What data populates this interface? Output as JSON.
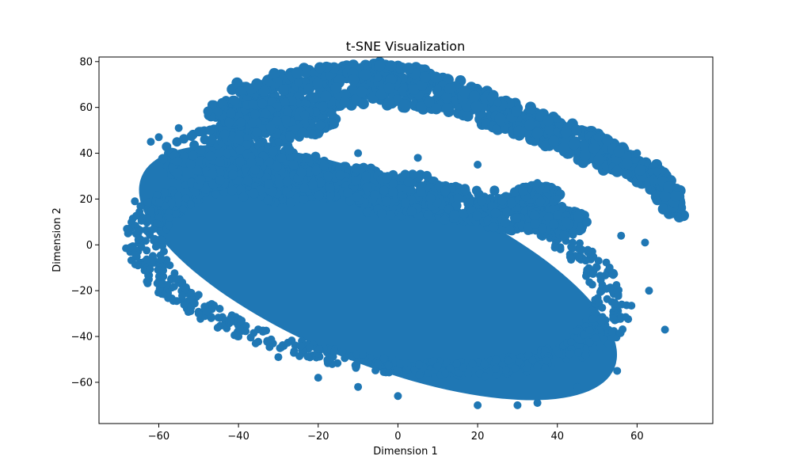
{
  "chart_data": {
    "type": "scatter",
    "title": "t-SNE Visualization",
    "xlabel": "Dimension 1",
    "ylabel": "Dimension 2",
    "xlim": [
      -75,
      79
    ],
    "ylim": [
      -78,
      82
    ],
    "xticks": [
      -60,
      -40,
      -20,
      0,
      20,
      40,
      60
    ],
    "yticks": [
      -60,
      -40,
      -20,
      0,
      20,
      40,
      60,
      80
    ],
    "grid": false,
    "legend": "none",
    "marker_color": "#1f77b4",
    "marker": "circle",
    "approximate_point_count": 15000,
    "regions": [
      {
        "label": "main-cluster",
        "shape": "ellipse",
        "center": [
          -5,
          -12
        ],
        "radii": [
          64,
          40
        ],
        "rotation_deg": -22,
        "x_range": [
          -69,
          68
        ],
        "y_range": [
          -71,
          49
        ]
      },
      {
        "label": "upper-arc",
        "shape": "arc",
        "x_range": [
          -40,
          72
        ],
        "y_range": [
          12,
          75
        ],
        "path": [
          [
            -40,
            62
          ],
          [
            -25,
            68
          ],
          [
            -5,
            71
          ],
          [
            10,
            67
          ],
          [
            25,
            58
          ],
          [
            40,
            48
          ],
          [
            55,
            38
          ],
          [
            65,
            28
          ],
          [
            70,
            16
          ]
        ]
      },
      {
        "label": "inner-bands",
        "shape": "bands",
        "x_range": [
          -15,
          45
        ],
        "y_range": [
          10,
          40
        ]
      }
    ],
    "sample_points": [
      [
        -68,
        7
      ],
      [
        -67,
        -1
      ],
      [
        -66,
        19
      ],
      [
        -63,
        -16
      ],
      [
        -62,
        45
      ],
      [
        -60,
        47
      ],
      [
        -55,
        51
      ],
      [
        -50,
        -30
      ],
      [
        -45,
        58
      ],
      [
        -40,
        -40
      ],
      [
        -30,
        -49
      ],
      [
        -25,
        71
      ],
      [
        -20,
        -58
      ],
      [
        -10,
        -62
      ],
      [
        -5,
        73
      ],
      [
        0,
        -66
      ],
      [
        10,
        68
      ],
      [
        20,
        -70
      ],
      [
        25,
        62
      ],
      [
        30,
        -70
      ],
      [
        35,
        -69
      ],
      [
        40,
        55
      ],
      [
        45,
        -62
      ],
      [
        50,
        47
      ],
      [
        55,
        -55
      ],
      [
        60,
        40
      ],
      [
        63,
        -20
      ],
      [
        65,
        32
      ],
      [
        67,
        -37
      ],
      [
        70,
        25
      ],
      [
        72,
        13
      ],
      [
        45,
        13
      ],
      [
        40,
        20
      ],
      [
        35,
        27
      ],
      [
        20,
        35
      ],
      [
        5,
        38
      ],
      [
        -10,
        40
      ],
      [
        -30,
        45
      ],
      [
        56,
        4
      ],
      [
        62,
        1
      ]
    ]
  }
}
